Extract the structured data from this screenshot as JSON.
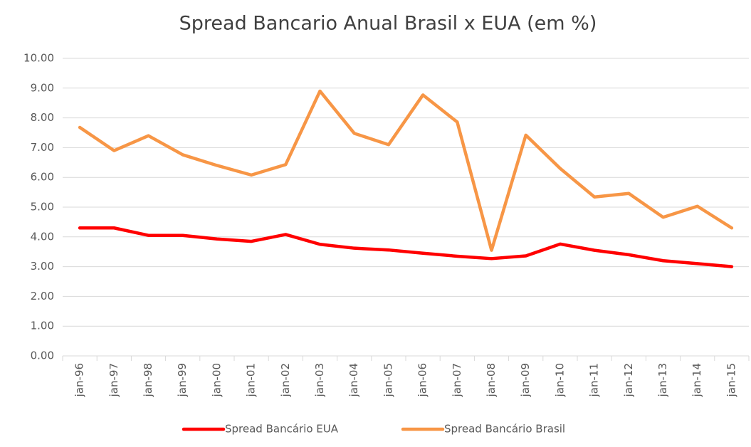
{
  "chart_data": {
    "type": "line",
    "title": "Spread Bancario Anual Brasil x EUA (em %)",
    "categories": [
      "jan-96",
      "jan-97",
      "jan-98",
      "jan-99",
      "jan-00",
      "jan-01",
      "jan-02",
      "jan-03",
      "jan-04",
      "jan-05",
      "jan-06",
      "jan-07",
      "jan-08",
      "jan-09",
      "jan-10",
      "jan-11",
      "jan-12",
      "jan-13",
      "jan-14",
      "jan-15"
    ],
    "series": [
      {
        "name": "Spread Bancário EUA",
        "color": "#ff0000",
        "values": [
          4.3,
          4.3,
          4.05,
          4.05,
          3.93,
          3.85,
          4.08,
          3.75,
          3.62,
          3.56,
          3.45,
          3.35,
          3.27,
          3.36,
          3.76,
          3.55,
          3.4,
          3.2,
          3.1,
          3.0
        ]
      },
      {
        "name": "Spread Bancário Brasil",
        "color": "#f79646",
        "values": [
          7.68,
          6.9,
          7.4,
          6.76,
          6.4,
          6.08,
          6.43,
          8.9,
          7.48,
          7.1,
          8.77,
          7.86,
          3.55,
          7.42,
          6.3,
          5.34,
          5.46,
          4.66,
          5.03,
          4.3
        ]
      }
    ],
    "ylim": [
      0,
      10
    ],
    "yticks": [
      {
        "value": 0,
        "label": "0.00"
      },
      {
        "value": 1,
        "label": "1.00"
      },
      {
        "value": 2,
        "label": "2.00"
      },
      {
        "value": 3,
        "label": "3.00"
      },
      {
        "value": 4,
        "label": "4.00"
      },
      {
        "value": 5,
        "label": "5.00"
      },
      {
        "value": 6,
        "label": "6.00"
      },
      {
        "value": 7,
        "label": "7.00"
      },
      {
        "value": 8,
        "label": "8.00"
      },
      {
        "value": 9,
        "label": "9.00"
      },
      {
        "value": 10,
        "label": "10.00"
      }
    ],
    "grid": true,
    "legend": "bottom"
  }
}
